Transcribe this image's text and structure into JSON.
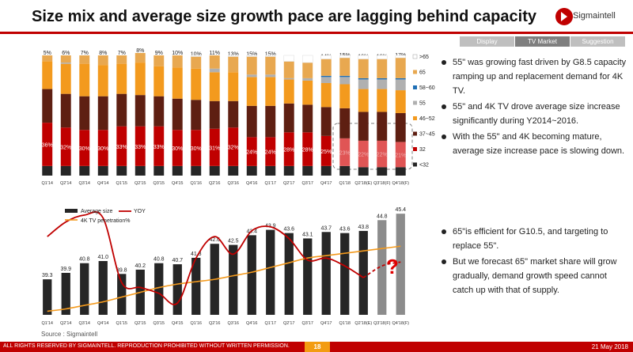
{
  "title": "Size mix and average size growth pace are lagging behind capacity",
  "logo_text": "Sigmaintell",
  "tabs": [
    {
      "label": "Display",
      "active": false
    },
    {
      "label": "TV Market",
      "active": true
    },
    {
      "label": "Suggestion",
      "active": false
    }
  ],
  "bullets_top": [
    "55\" was growing fast driven by G8.5 capacity ramping up and replacement demand for 4K TV.",
    "55\" and 4K TV drove average size increase significantly during Y2014~2016.",
    "With the 55\" and 4K becoming mature, average size increase pace is slowing down."
  ],
  "bullets_bottom": [
    "65\"is efficient for G10.5, and targeting to replace 55\".",
    "But we forecast 65\" market share will grow gradually, demand growth speed cannot catch up with that of supply."
  ],
  "question_mark": "?",
  "source": "Source : Sigmaintell",
  "footer": {
    "rights": "ALL RIGHTS RESERVED BY SIGMAINTELL. REPRODUCTION PROHIBITED WITHOUT WRITTEN PERMISSION.",
    "page": "18",
    "date": "21 May 2018"
  },
  "chart_data": [
    {
      "type": "bar",
      "stacked": true,
      "categories": [
        "Q1'14",
        "Q2'14",
        "Q3'14",
        "Q4'14",
        "Q1'15",
        "Q2'15",
        "Q3'15",
        "Q4'15",
        "Q1'16",
        "Q2'16",
        "Q3'16",
        "Q4'16",
        "Q1'17",
        "Q2'17",
        "Q3'17",
        "Q4'17",
        "Q1'18",
        "Q2'18(E)",
        "Q3'18(F)",
        "Q4'18(F)"
      ],
      "ylim": [
        0,
        100
      ],
      "legend_position": "right",
      "highlight_from_index": 16,
      "series": [
        {
          "name": "<32",
          "color": "#262626",
          "values": [
            8,
            8,
            8,
            8,
            8,
            8,
            8,
            8,
            8,
            8,
            8,
            8,
            8,
            8,
            8,
            8,
            8,
            7,
            7,
            7
          ]
        },
        {
          "name": "32",
          "color": "#c00000",
          "values": [
            36,
            32,
            30,
            30,
            33,
            33,
            33,
            30,
            30,
            31,
            32,
            24,
            24,
            28,
            28,
            25,
            23,
            22,
            22,
            21
          ]
        },
        {
          "name": "37~45",
          "color": "#5e1f12",
          "values": [
            28,
            28,
            28,
            28,
            27,
            26,
            25,
            26,
            25,
            23,
            22,
            26,
            26,
            24,
            23,
            24,
            25,
            24,
            24,
            24
          ]
        },
        {
          "name": "46~52",
          "color": "#f39a1e",
          "values": [
            23,
            25,
            27,
            26,
            25,
            27,
            25,
            26,
            26,
            24,
            24,
            24,
            24,
            20,
            20,
            20,
            20,
            19,
            19,
            19
          ]
        },
        {
          "name": "55",
          "color": "#b0b0b0",
          "values": [
            0,
            1,
            0,
            0,
            0,
            0,
            0,
            0,
            0,
            3,
            0,
            2,
            2,
            1,
            2,
            5,
            6,
            8,
            8,
            9
          ]
        },
        {
          "name": "58~60",
          "color": "#1f6fb5",
          "values": [
            0,
            0,
            0,
            0,
            0,
            0,
            0,
            0,
            0,
            0,
            0,
            0,
            0,
            0,
            0,
            1,
            1,
            1,
            1,
            1
          ]
        },
        {
          "name": "65",
          "color": "#e8a850",
          "values": [
            5,
            6,
            7,
            8,
            7,
            8,
            9,
            10,
            10,
            11,
            13,
            15,
            15,
            14,
            13,
            14,
            15,
            16,
            16,
            17
          ]
        },
        {
          "name": ">65",
          "color": "#ffffff",
          "values": [
            0,
            0,
            0,
            0,
            0,
            0,
            0,
            0,
            1,
            0,
            1,
            1,
            1,
            5,
            6,
            3,
            2,
            3,
            3,
            2
          ]
        }
      ],
      "labels": {
        "<32": [],
        "32": [
          "36%",
          "32%",
          "30%",
          "30%",
          "33%",
          "33%",
          "33%",
          "30%",
          "30%",
          "31%",
          "32%",
          "24%",
          "24%",
          "28%",
          "28%",
          "25%",
          "23%",
          "22%",
          "22%",
          "21%"
        ],
        "65": [
          "5%",
          "6%",
          "7%",
          "8%",
          "7%",
          "8%",
          "9%",
          "10%",
          "10%",
          "11%",
          "13%",
          "15%",
          "15%",
          "14%",
          "13%",
          "14%",
          "15%",
          "16%",
          "16%",
          "17%"
        ]
      },
      "legend_labels": [
        ">65",
        "65",
        "58~60",
        "55",
        "46~52",
        "37~45",
        "32",
        "<32"
      ]
    },
    {
      "type": "bar+line",
      "categories": [
        "Q1'14",
        "Q2'14",
        "Q3'14",
        "Q4'14",
        "Q1'15",
        "Q2'15",
        "Q3'15",
        "Q4'15",
        "Q1'16",
        "Q2'16",
        "Q3'16",
        "Q4'16",
        "Q1'17",
        "Q2'17",
        "Q3'17",
        "Q4'17",
        "Q1'18",
        "Q2'18(E)",
        "Q3'18(F)",
        "Q4'18(F)"
      ],
      "legend": [
        "Average size",
        "YOY",
        "4K  TV penetration%"
      ],
      "bar_values": [
        39.3,
        39.9,
        40.8,
        41.0,
        39.8,
        40.2,
        40.8,
        40.7,
        41.3,
        42.6,
        42.5,
        43.4,
        43.9,
        43.6,
        43.1,
        43.7,
        43.6,
        43.8,
        44.8,
        45.4
      ],
      "bar_labels": [
        "39.3",
        "39.9",
        "40.8",
        "41.0",
        "39.8",
        "40.2",
        "40.8",
        "40.7",
        "41.3",
        "42.6",
        "42.5",
        "43.4",
        "43.9",
        "43.6",
        "43.1",
        "43.7",
        "43.6",
        "43.8",
        "44.8",
        "45.4"
      ],
      "bar_ylim": [
        36,
        46
      ],
      "forecast_from_index": 18,
      "yoy_values": [
        6.0,
        7.5,
        8.2,
        7.9,
        1.3,
        0.8,
        0.2,
        -0.8,
        3.8,
        6.0,
        4.2,
        6.6,
        7.0,
        5.8,
        3.6,
        3.8,
        3.0,
        1.8,
        3.0,
        3.4
      ],
      "yoy_ylim": [
        -2,
        9
      ],
      "yoy_forecast_from_index": 17,
      "penetration_values": [
        3,
        5,
        8,
        11,
        15,
        19,
        23,
        26,
        28,
        30,
        33,
        36,
        40,
        44,
        48,
        50,
        52,
        54,
        56,
        58
      ],
      "penetration_ylim": [
        0,
        100
      ],
      "bar_color": "#262626",
      "forecast_bar_color": "#8c8c8c",
      "yoy_color": "#c00000",
      "penetration_color": "#f39a1e"
    }
  ]
}
